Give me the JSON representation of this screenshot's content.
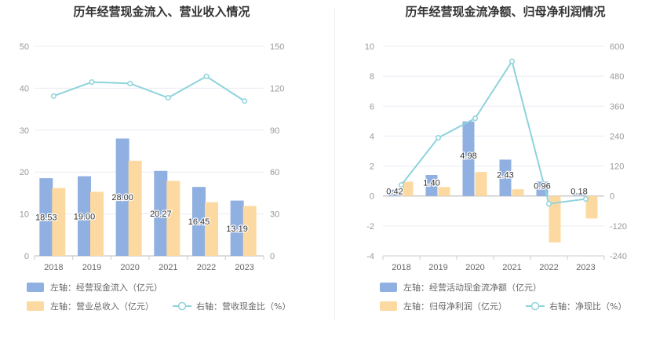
{
  "chart_data": [
    {
      "type": "bar",
      "title": "历年经营现金流入、营业收入情况",
      "categories": [
        "2018",
        "2019",
        "2020",
        "2021",
        "2022",
        "2023"
      ],
      "left_axis": {
        "min": 0,
        "max": 50,
        "step": 10,
        "ticks": [
          "0",
          "10",
          "20",
          "30",
          "40",
          "50"
        ]
      },
      "right_axis": {
        "min": 0,
        "max": 150,
        "step": 30,
        "ticks": [
          "0",
          "30",
          "60",
          "90",
          "120",
          "150"
        ]
      },
      "series": [
        {
          "name": "左轴：经营现金流入（亿元）",
          "kind": "bar",
          "axis": "left",
          "color": "#8fb0e0",
          "values": [
            18.53,
            19.0,
            28.0,
            20.27,
            16.45,
            13.19
          ],
          "labels": [
            "18.53",
            "19.00",
            "28.00",
            "20.27",
            "16.45",
            "13.19"
          ]
        },
        {
          "name": "左轴：营业总收入（亿元）",
          "kind": "bar",
          "axis": "left",
          "color": "#fcd9a0",
          "values": [
            16.2,
            15.3,
            22.7,
            17.9,
            12.8,
            11.9
          ]
        },
        {
          "name": "右轴：营收现金比（%）",
          "kind": "line",
          "axis": "right",
          "color": "#8ed3dc",
          "values": [
            114.4,
            124.4,
            123.4,
            113.2,
            128.5,
            110.8
          ]
        }
      ],
      "legend": "bottom"
    },
    {
      "type": "bar",
      "title": "历年经营现金流净额、归母净利润情况",
      "categories": [
        "2018",
        "2019",
        "2020",
        "2021",
        "2022",
        "2023"
      ],
      "left_axis": {
        "min": -4,
        "max": 10,
        "step": 2,
        "ticks": [
          "-4",
          "-2",
          "0",
          "2",
          "4",
          "6",
          "8",
          "10"
        ]
      },
      "right_axis": {
        "min": -240,
        "max": 600,
        "step": 120,
        "ticks": [
          "-240",
          "-120",
          "0",
          "120",
          "240",
          "360",
          "480",
          "600"
        ]
      },
      "series": [
        {
          "name": "左轴：经营活动现金流净额（亿元）",
          "kind": "bar",
          "axis": "left",
          "color": "#8fb0e0",
          "values": [
            0.42,
            1.4,
            4.98,
            2.43,
            0.96,
            0.18
          ],
          "labels": [
            "0.42",
            "1.40",
            "4.98",
            "2.43",
            "0.96",
            "0.18"
          ]
        },
        {
          "name": "左轴：归母净利润（亿元）",
          "kind": "bar",
          "axis": "left",
          "color": "#fcd9a0",
          "values": [
            0.95,
            0.6,
            1.6,
            0.45,
            -3.1,
            -1.5
          ]
        },
        {
          "name": "右轴：净现比（%）",
          "kind": "line",
          "axis": "right",
          "color": "#8ed3dc",
          "values": [
            44.2,
            233.3,
            311.3,
            540.0,
            -31.0,
            -12.0
          ]
        }
      ],
      "legend": "bottom"
    }
  ]
}
